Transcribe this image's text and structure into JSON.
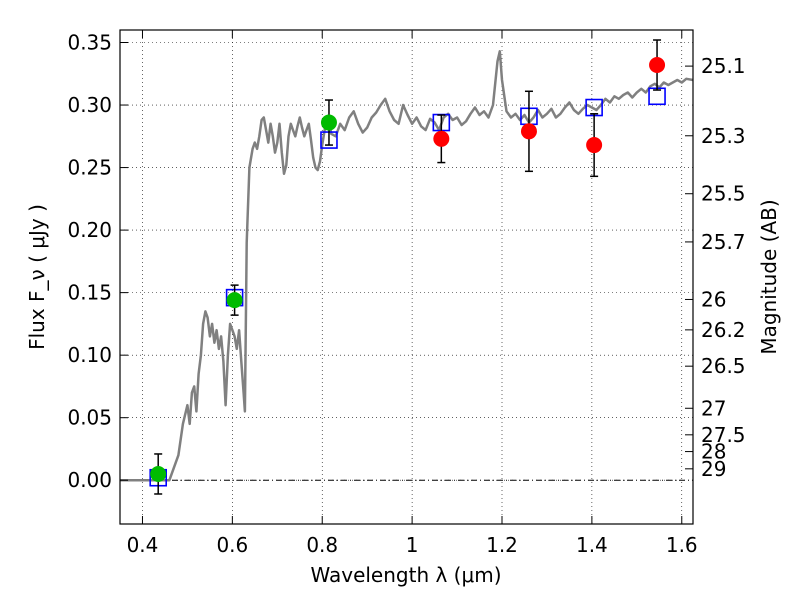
{
  "chart_data": {
    "type": "scatter",
    "xlabel": "Wavelength  λ (μm)",
    "ylabel": "Flux  F_ν  ( μJy )",
    "ylabel_right": "Magnitude (AB)",
    "xlim": [
      0.35,
      1.625
    ],
    "ylim": [
      -0.035,
      0.36
    ],
    "grid": true,
    "x_ticks": [
      0.4,
      0.6,
      0.8,
      1.0,
      1.2,
      1.4,
      1.6
    ],
    "x_tick_labels": [
      "0.4",
      "0.6",
      "0.8",
      "1",
      "1.2",
      "1.4",
      "1.6"
    ],
    "y_ticks": [
      0.0,
      0.05,
      0.1,
      0.15,
      0.2,
      0.25,
      0.3,
      0.35
    ],
    "y_tick_labels": [
      "0.00",
      "0.05",
      "0.10",
      "0.15",
      "0.20",
      "0.25",
      "0.30",
      "0.35"
    ],
    "right_ticks": [
      {
        "label": "25.1",
        "mag": 25.1
      },
      {
        "label": "25.3",
        "mag": 25.3
      },
      {
        "label": "25.5",
        "mag": 25.5
      },
      {
        "label": "25.7",
        "mag": 25.7
      },
      {
        "label": "26",
        "mag": 26.0
      },
      {
        "label": "26.2",
        "mag": 26.2
      },
      {
        "label": "26.5",
        "mag": 26.5
      },
      {
        "label": "27",
        "mag": 27.0
      },
      {
        "label": "27.5",
        "mag": 27.5
      },
      {
        "label": "28",
        "mag": 28.0
      },
      {
        "label": "29",
        "mag": 29.0
      }
    ],
    "series": [
      {
        "kind": "model-spectrum",
        "color": "#808080",
        "points": [
          [
            0.35,
            0.0
          ],
          [
            0.44,
            0.0
          ],
          [
            0.46,
            0.0
          ],
          [
            0.48,
            0.02
          ],
          [
            0.49,
            0.045
          ],
          [
            0.5,
            0.06
          ],
          [
            0.505,
            0.045
          ],
          [
            0.51,
            0.07
          ],
          [
            0.515,
            0.075
          ],
          [
            0.52,
            0.055
          ],
          [
            0.525,
            0.085
          ],
          [
            0.53,
            0.1
          ],
          [
            0.535,
            0.125
          ],
          [
            0.54,
            0.135
          ],
          [
            0.545,
            0.13
          ],
          [
            0.55,
            0.115
          ],
          [
            0.555,
            0.125
          ],
          [
            0.56,
            0.11
          ],
          [
            0.565,
            0.12
          ],
          [
            0.57,
            0.105
          ],
          [
            0.575,
            0.115
          ],
          [
            0.58,
            0.095
          ],
          [
            0.585,
            0.06
          ],
          [
            0.59,
            0.1
          ],
          [
            0.595,
            0.125
          ],
          [
            0.6,
            0.12
          ],
          [
            0.605,
            0.115
          ],
          [
            0.61,
            0.105
          ],
          [
            0.615,
            0.12
          ],
          [
            0.62,
            0.095
          ],
          [
            0.625,
            0.07
          ],
          [
            0.628,
            0.055
          ],
          [
            0.632,
            0.19
          ],
          [
            0.638,
            0.25
          ],
          [
            0.645,
            0.265
          ],
          [
            0.65,
            0.27
          ],
          [
            0.655,
            0.265
          ],
          [
            0.66,
            0.275
          ],
          [
            0.665,
            0.288
          ],
          [
            0.67,
            0.29
          ],
          [
            0.675,
            0.28
          ],
          [
            0.68,
            0.27
          ],
          [
            0.685,
            0.285
          ],
          [
            0.69,
            0.275
          ],
          [
            0.695,
            0.262
          ],
          [
            0.7,
            0.27
          ],
          [
            0.705,
            0.285
          ],
          [
            0.71,
            0.262
          ],
          [
            0.715,
            0.245
          ],
          [
            0.72,
            0.252
          ],
          [
            0.725,
            0.275
          ],
          [
            0.73,
            0.285
          ],
          [
            0.735,
            0.28
          ],
          [
            0.74,
            0.275
          ],
          [
            0.745,
            0.283
          ],
          [
            0.75,
            0.29
          ],
          [
            0.755,
            0.282
          ],
          [
            0.76,
            0.275
          ],
          [
            0.765,
            0.28
          ],
          [
            0.77,
            0.285
          ],
          [
            0.775,
            0.272
          ],
          [
            0.78,
            0.258
          ],
          [
            0.785,
            0.25
          ],
          [
            0.79,
            0.248
          ],
          [
            0.795,
            0.255
          ],
          [
            0.8,
            0.268
          ],
          [
            0.81,
            0.29
          ],
          [
            0.815,
            0.288
          ],
          [
            0.82,
            0.277
          ],
          [
            0.83,
            0.275
          ],
          [
            0.84,
            0.285
          ],
          [
            0.85,
            0.28
          ],
          [
            0.86,
            0.29
          ],
          [
            0.87,
            0.295
          ],
          [
            0.88,
            0.285
          ],
          [
            0.89,
            0.278
          ],
          [
            0.9,
            0.282
          ],
          [
            0.91,
            0.29
          ],
          [
            0.92,
            0.294
          ],
          [
            0.93,
            0.3
          ],
          [
            0.94,
            0.305
          ],
          [
            0.95,
            0.295
          ],
          [
            0.96,
            0.288
          ],
          [
            0.97,
            0.285
          ],
          [
            0.98,
            0.3
          ],
          [
            0.99,
            0.292
          ],
          [
            1.0,
            0.285
          ],
          [
            1.01,
            0.29
          ],
          [
            1.02,
            0.283
          ],
          [
            1.03,
            0.28
          ],
          [
            1.04,
            0.289
          ],
          [
            1.05,
            0.286
          ],
          [
            1.06,
            0.28
          ],
          [
            1.07,
            0.29
          ],
          [
            1.08,
            0.293
          ],
          [
            1.09,
            0.288
          ],
          [
            1.1,
            0.29
          ],
          [
            1.11,
            0.284
          ],
          [
            1.12,
            0.287
          ],
          [
            1.13,
            0.293
          ],
          [
            1.14,
            0.298
          ],
          [
            1.15,
            0.292
          ],
          [
            1.16,
            0.295
          ],
          [
            1.17,
            0.29
          ],
          [
            1.18,
            0.3
          ],
          [
            1.19,
            0.335
          ],
          [
            1.195,
            0.343
          ],
          [
            1.2,
            0.32
          ],
          [
            1.21,
            0.295
          ],
          [
            1.22,
            0.29
          ],
          [
            1.23,
            0.293
          ],
          [
            1.24,
            0.288
          ],
          [
            1.25,
            0.292
          ],
          [
            1.26,
            0.286
          ],
          [
            1.27,
            0.29
          ],
          [
            1.28,
            0.296
          ],
          [
            1.29,
            0.29
          ],
          [
            1.3,
            0.293
          ],
          [
            1.31,
            0.297
          ],
          [
            1.32,
            0.29
          ],
          [
            1.33,
            0.293
          ],
          [
            1.34,
            0.298
          ],
          [
            1.35,
            0.302
          ],
          [
            1.36,
            0.296
          ],
          [
            1.37,
            0.293
          ],
          [
            1.38,
            0.297
          ],
          [
            1.39,
            0.3
          ],
          [
            1.4,
            0.298
          ],
          [
            1.41,
            0.296
          ],
          [
            1.42,
            0.3
          ],
          [
            1.43,
            0.305
          ],
          [
            1.44,
            0.302
          ],
          [
            1.45,
            0.307
          ],
          [
            1.46,
            0.305
          ],
          [
            1.47,
            0.308
          ],
          [
            1.48,
            0.31
          ],
          [
            1.49,
            0.306
          ],
          [
            1.5,
            0.31
          ],
          [
            1.51,
            0.313
          ],
          [
            1.52,
            0.31
          ],
          [
            1.53,
            0.315
          ],
          [
            1.54,
            0.317
          ],
          [
            1.55,
            0.314
          ],
          [
            1.56,
            0.318
          ],
          [
            1.57,
            0.316
          ],
          [
            1.58,
            0.318
          ],
          [
            1.59,
            0.32
          ],
          [
            1.6,
            0.318
          ],
          [
            1.61,
            0.321
          ],
          [
            1.625,
            0.32
          ]
        ]
      },
      {
        "kind": "model-photometry",
        "color": "#0000ff",
        "marker": "open-square",
        "points": [
          [
            0.435,
            0.002
          ],
          [
            0.605,
            0.146
          ],
          [
            0.815,
            0.272
          ],
          [
            1.065,
            0.286
          ],
          [
            1.26,
            0.291
          ],
          [
            1.405,
            0.298
          ],
          [
            1.545,
            0.307
          ]
        ]
      },
      {
        "kind": "observed-green",
        "color": "#00bb00",
        "marker": "filled-circle",
        "points": [
          {
            "x": 0.435,
            "y": 0.005,
            "err": 0.016
          },
          {
            "x": 0.605,
            "y": 0.144,
            "err": 0.012
          },
          {
            "x": 0.815,
            "y": 0.286,
            "err": 0.018
          }
        ]
      },
      {
        "kind": "observed-red",
        "color": "#ff0000",
        "marker": "filled-circle",
        "points": [
          {
            "x": 1.065,
            "y": 0.273,
            "err": 0.019
          },
          {
            "x": 1.26,
            "y": 0.279,
            "err": 0.032
          },
          {
            "x": 1.405,
            "y": 0.268,
            "err": 0.025
          },
          {
            "x": 1.545,
            "y": 0.332,
            "err": 0.02
          }
        ]
      }
    ]
  }
}
